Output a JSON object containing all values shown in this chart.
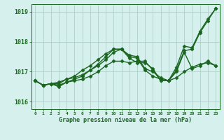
{
  "title": "Graphe pression niveau de la mer (hPa)",
  "xlabel_hours": [
    0,
    1,
    2,
    3,
    4,
    5,
    6,
    7,
    8,
    9,
    10,
    11,
    12,
    13,
    14,
    15,
    16,
    17,
    18,
    19,
    20,
    21,
    22,
    23
  ],
  "ylim": [
    1015.75,
    1019.25
  ],
  "yticks": [
    1016,
    1017,
    1018,
    1019
  ],
  "background_color": "#d6f0ee",
  "grid_color": "#b0cfc9",
  "line_color": "#1a6620",
  "marker": "D",
  "markersize": 2.5,
  "linewidth": 1.0,
  "series": [
    [
      1016.7,
      1016.55,
      1016.6,
      1016.65,
      1016.75,
      1016.85,
      1017.05,
      1017.2,
      1017.4,
      1017.6,
      1017.75,
      1017.75,
      1017.45,
      1017.3,
      1017.3,
      1017.1,
      1016.7,
      1016.7,
      1017.15,
      1017.85,
      1017.8,
      1018.35,
      1018.75,
      1019.1
    ],
    [
      1016.7,
      1016.55,
      1016.6,
      1016.5,
      1016.65,
      1016.75,
      1016.85,
      1017.05,
      1017.25,
      1017.5,
      1017.75,
      1017.75,
      1017.5,
      1017.45,
      1017.05,
      1016.85,
      1016.75,
      1016.7,
      1016.8,
      1017.0,
      1017.15,
      1017.25,
      1017.3,
      1017.2
    ],
    [
      1016.7,
      1016.55,
      1016.6,
      1016.55,
      1016.65,
      1016.7,
      1016.75,
      1016.85,
      1017.0,
      1017.2,
      1017.35,
      1017.35,
      1017.3,
      1017.35,
      1017.35,
      1017.05,
      1016.7,
      1016.7,
      1017.0,
      1017.65,
      1017.1,
      1017.2,
      1017.35,
      1017.2
    ],
    [
      1016.7,
      1016.55,
      1016.6,
      1016.6,
      1016.75,
      1016.8,
      1016.9,
      1017.05,
      1017.2,
      1017.4,
      1017.65,
      1017.75,
      1017.55,
      1017.5,
      1017.1,
      1017.0,
      1016.8,
      1016.7,
      1017.05,
      1017.7,
      1017.75,
      1018.3,
      1018.7,
      1019.1
    ]
  ]
}
